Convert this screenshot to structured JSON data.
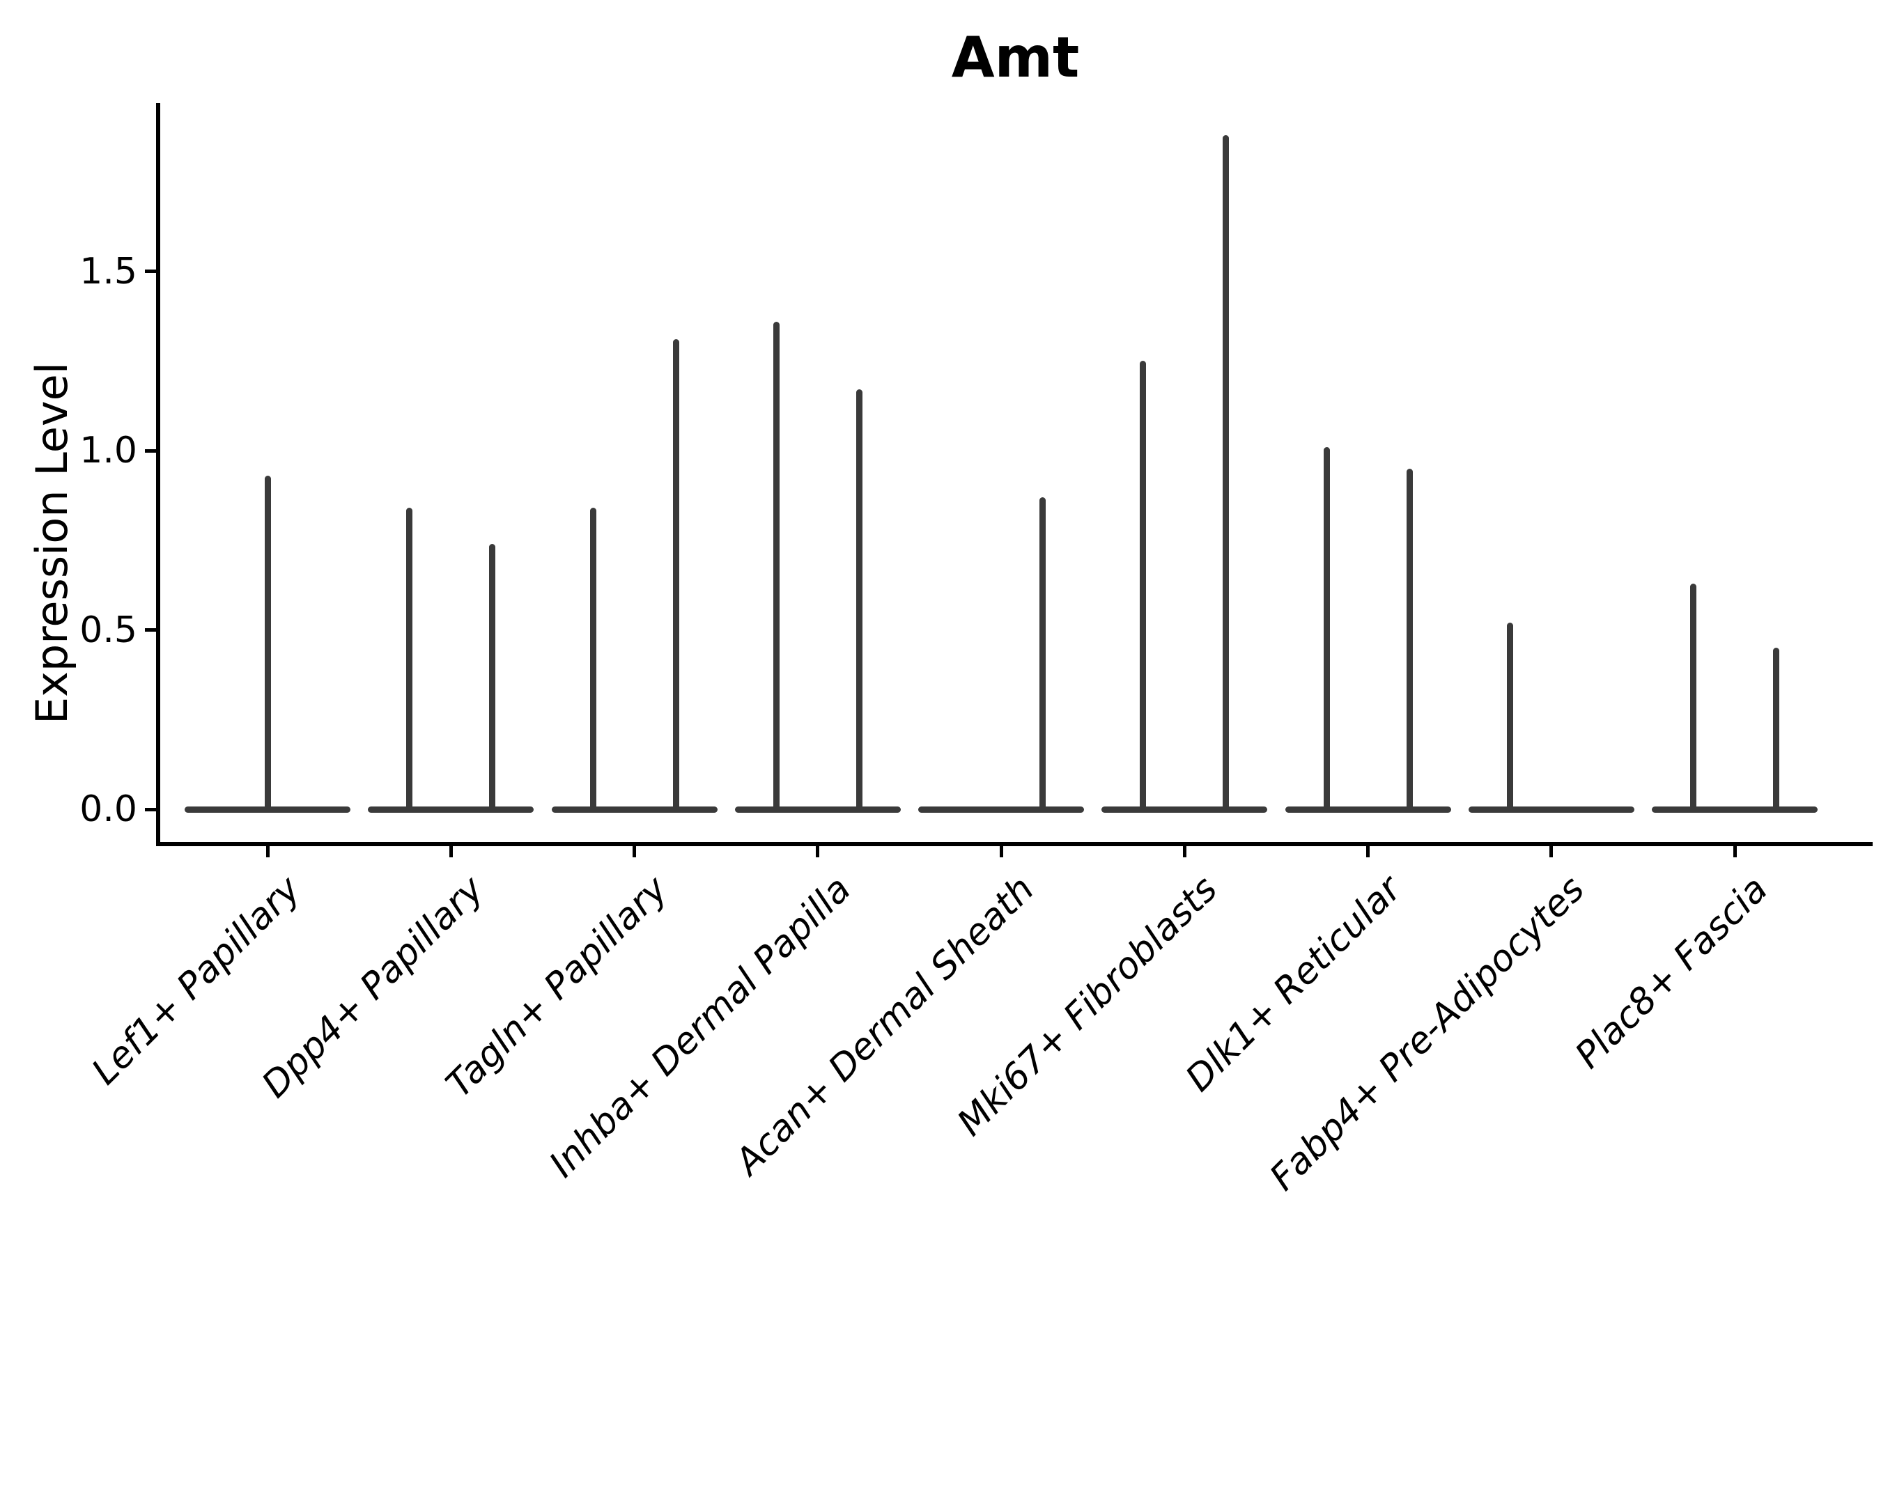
{
  "chart_data": {
    "type": "violin",
    "title": "Amt",
    "ylabel": "Expression Level",
    "xlabel": "",
    "y_tick_labels": [
      "0.0",
      "0.5",
      "1.0",
      "1.5"
    ],
    "y_tick_values": [
      0.0,
      0.5,
      1.0,
      1.5
    ],
    "ylim": [
      -0.09,
      1.96
    ],
    "grid": false,
    "legend": "none",
    "categories": [
      "Lef1+ Papillary",
      "Dpp4+ Papillary",
      "Tagln+ Papillary",
      "Inhba+ Dermal Papilla",
      "Acan+ Dermal Sheath",
      "Mki67+ Fibroblasts",
      "Dlk1+ Reticular",
      "Fabp4+ Pre-Adipocytes",
      "Plac8+ Fascia"
    ],
    "description": "Violin plot of Amt expression; each violin collapses to a flat line at 0 with a thin density spike reaching the maximum expression value.",
    "violins": [
      {
        "category": "Lef1+ Papillary",
        "spikes": [
          {
            "side": "center",
            "peak": 0.93
          }
        ]
      },
      {
        "category": "Dpp4+ Papillary",
        "spikes": [
          {
            "side": "left",
            "peak": 0.84
          },
          {
            "side": "right",
            "peak": 0.74
          }
        ]
      },
      {
        "category": "Tagln+ Papillary",
        "spikes": [
          {
            "side": "left",
            "peak": 0.84
          },
          {
            "side": "right",
            "peak": 1.31
          }
        ]
      },
      {
        "category": "Inhba+ Dermal Papilla",
        "spikes": [
          {
            "side": "left",
            "peak": 1.36
          },
          {
            "side": "right",
            "peak": 1.17
          }
        ]
      },
      {
        "category": "Acan+ Dermal Sheath",
        "spikes": [
          {
            "side": "right",
            "peak": 0.87
          }
        ]
      },
      {
        "category": "Mki67+ Fibroblasts",
        "spikes": [
          {
            "side": "left",
            "peak": 1.25
          },
          {
            "side": "right",
            "peak": 1.88
          }
        ]
      },
      {
        "category": "Dlk1+ Reticular",
        "spikes": [
          {
            "side": "left",
            "peak": 1.01
          },
          {
            "side": "right",
            "peak": 0.95
          }
        ]
      },
      {
        "category": "Fabp4+ Pre-Adipocytes",
        "spikes": [
          {
            "side": "left",
            "peak": 0.52
          }
        ]
      },
      {
        "category": "Plac8+ Fascia",
        "spikes": [
          {
            "side": "left",
            "peak": 0.63
          },
          {
            "side": "right",
            "peak": 0.45
          }
        ]
      }
    ],
    "style": {
      "violin_line_color": "#3a3a3a",
      "axis_color": "#000000",
      "background_color": "#ffffff",
      "title_bold": true,
      "x_labels_italic": true,
      "x_label_rotation_deg": 45
    }
  }
}
